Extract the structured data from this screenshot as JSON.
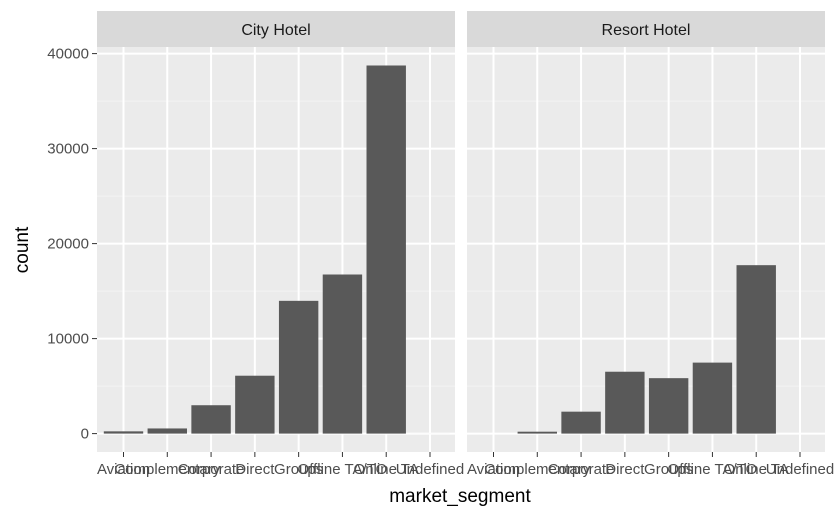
{
  "chart_data": {
    "type": "bar",
    "facet_variable": "hotel",
    "xlabel": "market_segment",
    "ylabel": "count",
    "ylim": [
      0,
      42000
    ],
    "yticks": [
      0,
      10000,
      20000,
      30000,
      40000
    ],
    "ytick_labels": [
      "0",
      "10000",
      "20000",
      "30000",
      "40000"
    ],
    "categories": [
      "Aviation",
      "Complementary",
      "Corporate",
      "Direct",
      "Groups",
      "Offline TA/TO",
      "Online TA",
      "Undefined"
    ],
    "grid": true,
    "panels": [
      {
        "name": "City Hotel",
        "values": [
          237,
          542,
          2986,
          6093,
          13975,
          16747,
          38748,
          2
        ]
      },
      {
        "name": "Resort Hotel",
        "values": [
          0,
          201,
          2309,
          6513,
          5836,
          7472,
          17729,
          0
        ]
      }
    ],
    "colors": {
      "bar": "#595959",
      "panel_background": "#ebebeb",
      "grid_major": "#ffffff",
      "grid_minor": "#f2f2f2",
      "strip_background": "#d9d9d9",
      "tick_text": "#4d4d4d",
      "title_text": "#000000"
    }
  }
}
